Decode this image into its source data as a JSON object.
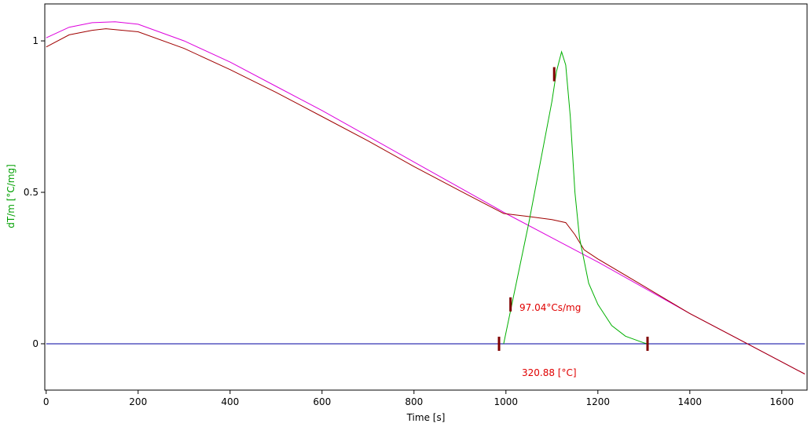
{
  "chart_data": {
    "type": "line",
    "x_label": "Time [s]",
    "y_label": "dT/m  [°C/mg]",
    "xlim": [
      -3,
      1655
    ],
    "ylim": [
      -0.153,
      1.122
    ],
    "xticks": [
      0,
      200,
      400,
      600,
      800,
      1000,
      1200,
      1400,
      1600
    ],
    "yticks": [
      0,
      0.5,
      1
    ],
    "series": [
      {
        "color": "#0000a0",
        "x": [
          0,
          1650
        ],
        "values": [
          0,
          0
        ]
      },
      {
        "color": "#dd00dd",
        "x": [
          0,
          50,
          100,
          150,
          200,
          300,
          400,
          500,
          600,
          700,
          800,
          900,
          1000,
          1100,
          1200,
          1300,
          1400,
          1500,
          1600,
          1650
        ],
        "values": [
          1.01,
          1.045,
          1.06,
          1.063,
          1.055,
          1.0,
          0.93,
          0.85,
          0.77,
          0.685,
          0.6,
          0.515,
          0.43,
          0.35,
          0.27,
          0.185,
          0.1,
          0.02,
          -0.06,
          -0.1
        ]
      },
      {
        "color": "#a00000",
        "x": [
          0,
          50,
          100,
          130,
          200,
          300,
          400,
          500,
          600,
          700,
          800,
          900,
          995,
          1050,
          1100,
          1130,
          1150,
          1170,
          1200,
          1300,
          1400,
          1500,
          1600,
          1650
        ],
        "values": [
          0.98,
          1.02,
          1.035,
          1.04,
          1.03,
          0.975,
          0.905,
          0.83,
          0.75,
          0.67,
          0.585,
          0.505,
          0.43,
          0.42,
          0.41,
          0.4,
          0.36,
          0.31,
          0.28,
          0.19,
          0.1,
          0.02,
          -0.06,
          -0.1
        ]
      },
      {
        "color": "#00b000",
        "x": [
          995,
          1050,
          1100,
          1110,
          1121,
          1130,
          1140,
          1150,
          1160,
          1180,
          1200,
          1230,
          1260,
          1300,
          1308
        ],
        "values": [
          0,
          0.4,
          0.8,
          0.9,
          0.964,
          0.92,
          0.75,
          0.5,
          0.35,
          0.2,
          0.13,
          0.06,
          0.025,
          0.003,
          0
        ]
      }
    ],
    "markers": {
      "color": "#800000",
      "x": [
        985,
        1308,
        1010,
        1105
      ],
      "values": [
        0,
        0,
        0.13,
        0.89
      ]
    },
    "annotations": [
      "97.04°Cs/mg",
      "320.88 [°C]"
    ]
  }
}
